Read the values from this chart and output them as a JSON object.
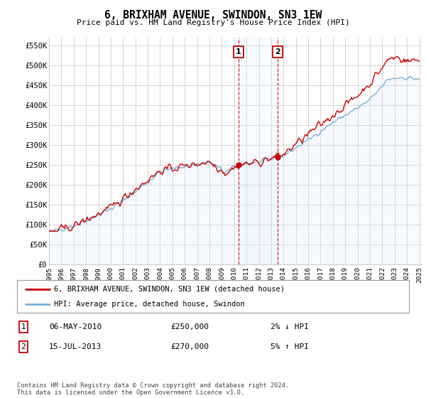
{
  "title": "6, BRIXHAM AVENUE, SWINDON, SN3 1EW",
  "subtitle": "Price paid vs. HM Land Registry's House Price Index (HPI)",
  "ylim": [
    0,
    570000
  ],
  "yticks": [
    0,
    50000,
    100000,
    150000,
    200000,
    250000,
    300000,
    350000,
    400000,
    450000,
    500000,
    550000
  ],
  "ytick_labels": [
    "£0",
    "£50K",
    "£100K",
    "£150K",
    "£200K",
    "£250K",
    "£300K",
    "£350K",
    "£400K",
    "£450K",
    "£500K",
    "£550K"
  ],
  "sale1_date": 2010.35,
  "sale1_price": 250000,
  "sale2_date": 2013.54,
  "sale2_price": 270000,
  "property_line_color": "#cc0000",
  "hpi_line_color": "#7ab0d4",
  "hpi_fill_color": "#ddeeff",
  "grid_color": "#cccccc",
  "background_color": "#ffffff",
  "legend_entry1": "6, BRIXHAM AVENUE, SWINDON, SN3 1EW (detached house)",
  "legend_entry2": "HPI: Average price, detached house, Swindon",
  "annotation1_date": "06-MAY-2010",
  "annotation1_price": "£250,000",
  "annotation1_hpi": "2% ↓ HPI",
  "annotation2_date": "15-JUL-2013",
  "annotation2_price": "£270,000",
  "annotation2_hpi": "5% ↑ HPI",
  "footer": "Contains HM Land Registry data © Crown copyright and database right 2024.\nThis data is licensed under the Open Government Licence v3.0.",
  "xstart": 1995,
  "xend": 2025
}
